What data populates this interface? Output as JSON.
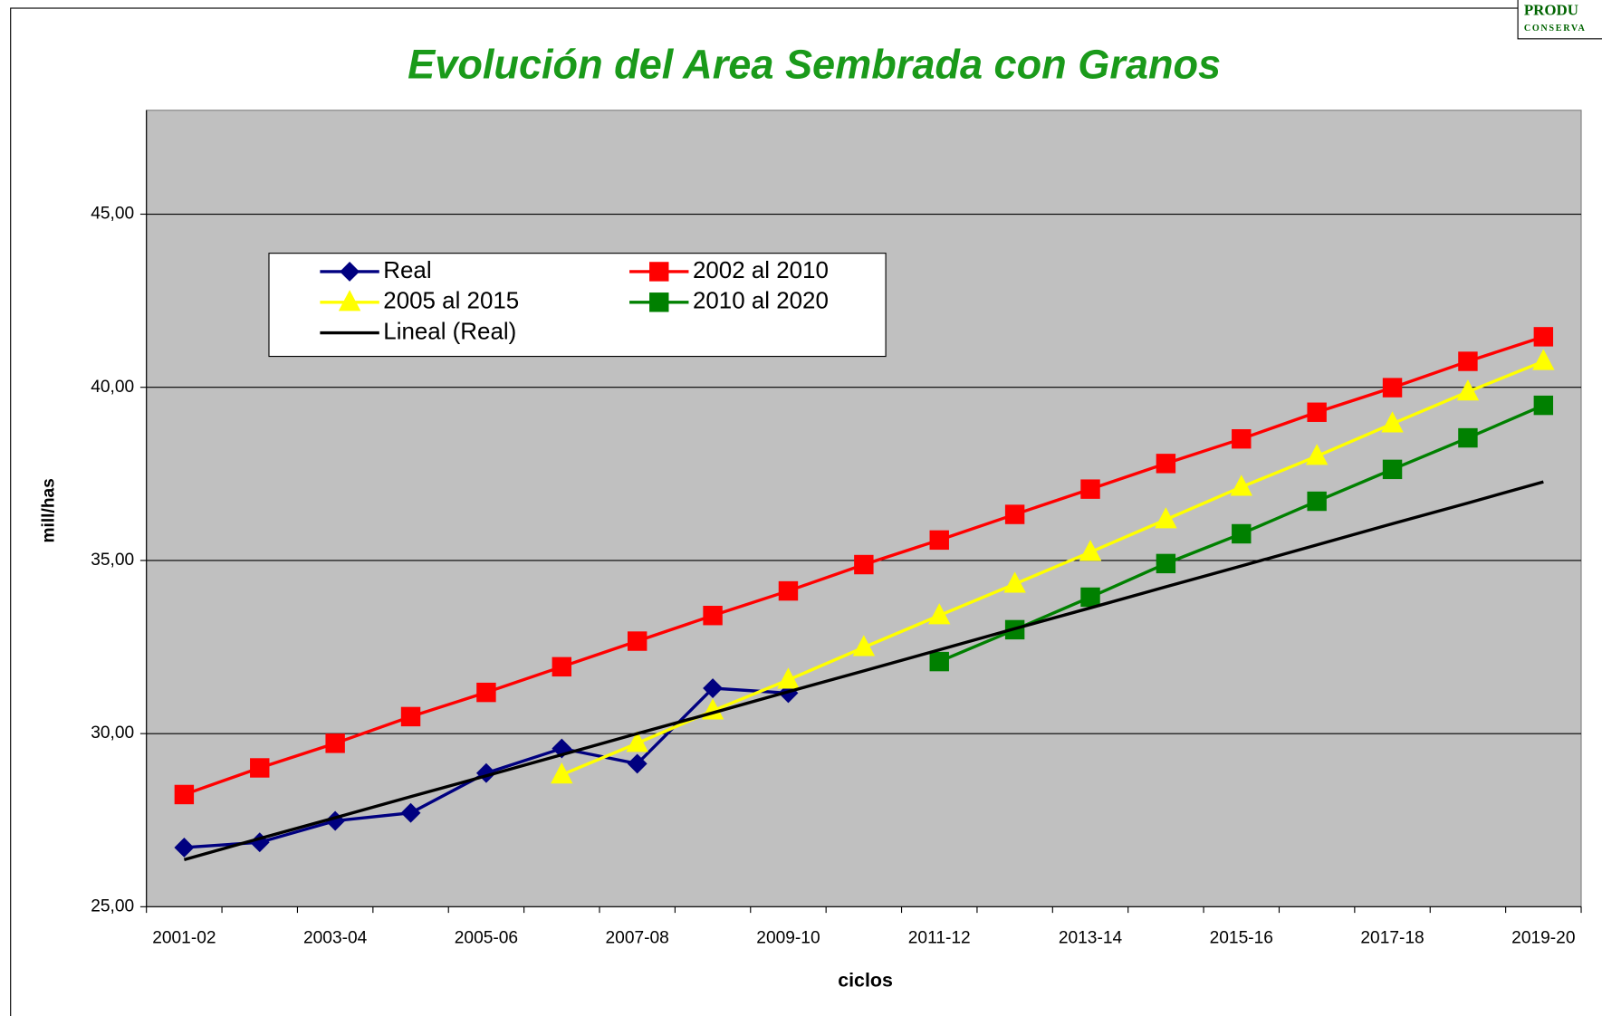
{
  "chart_data": {
    "type": "line",
    "title": "Evolución del Area Sembrada con Granos",
    "x_label": "ciclos",
    "y_label": "mill/has",
    "logo": [
      "PRODU",
      "CONSERVA"
    ],
    "categories": [
      "2001-02",
      null,
      "2003-04",
      null,
      "2005-06",
      null,
      "2007-08",
      null,
      "2009-10",
      null,
      "2011-12",
      null,
      "2013-14",
      null,
      "2015-16",
      null,
      "2017-18",
      null,
      "2019-20"
    ],
    "ylim": [
      25,
      48
    ],
    "yticks": [
      {
        "value": 25,
        "label": "25,00"
      },
      {
        "value": 30,
        "label": "30,00"
      },
      {
        "value": 35,
        "label": "35,00"
      },
      {
        "value": 40,
        "label": "40,00"
      },
      {
        "value": 45,
        "label": "45,00"
      }
    ],
    "grid": true,
    "series": [
      {
        "name": "Real",
        "color": "#000080",
        "marker": "diamond",
        "values": [
          26.71,
          26.86,
          27.48,
          27.71,
          28.86,
          29.57,
          29.13,
          31.31,
          31.17,
          null,
          null,
          null,
          null,
          null,
          null,
          null,
          null,
          null,
          null
        ]
      },
      {
        "name": "2002 al 2010",
        "color": "#ff0000",
        "marker": "square",
        "values": [
          28.24,
          29.01,
          29.72,
          30.49,
          31.19,
          31.93,
          32.67,
          33.41,
          34.12,
          34.88,
          35.59,
          36.33,
          37.06,
          37.8,
          38.51,
          39.28,
          39.99,
          40.75,
          41.46
        ]
      },
      {
        "name": "2005 al 2015",
        "color": "#ffff00",
        "marker": "triangle",
        "values": [
          null,
          null,
          null,
          null,
          null,
          28.81,
          29.72,
          30.66,
          31.55,
          32.49,
          33.41,
          34.32,
          35.24,
          36.18,
          37.12,
          38.01,
          38.95,
          39.87,
          40.75
        ]
      },
      {
        "name": "2010 al 2020",
        "color": "#008000",
        "marker": "square",
        "values": [
          null,
          null,
          null,
          null,
          null,
          null,
          null,
          null,
          null,
          null,
          32.08,
          33.0,
          33.94,
          34.91,
          35.77,
          36.71,
          37.63,
          38.54,
          39.48
        ]
      },
      {
        "name": "Lineal (Real)",
        "color": "#000000",
        "marker": "none",
        "values": [
          26.36,
          26.97,
          27.57,
          28.18,
          28.78,
          29.39,
          30.0,
          30.6,
          31.21,
          31.81,
          32.42,
          33.03,
          33.63,
          34.24,
          34.84,
          35.45,
          36.06,
          36.66,
          37.27
        ]
      }
    ]
  }
}
